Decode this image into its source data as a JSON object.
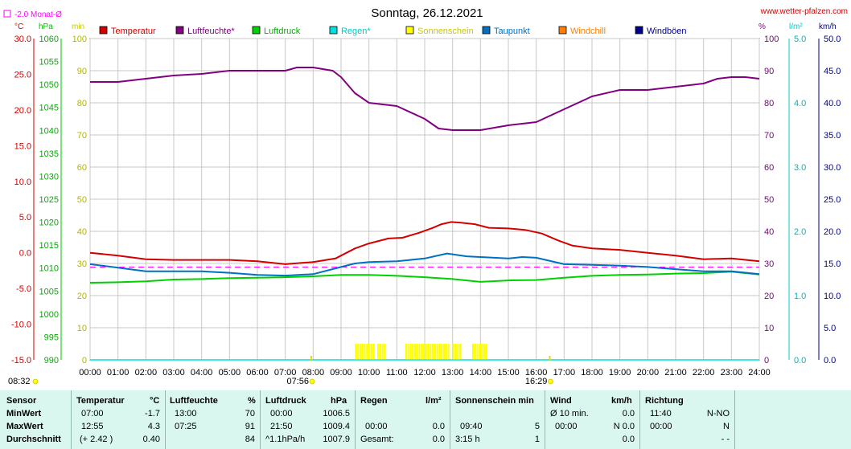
{
  "header": {
    "title": "Sonntag, 26.12.2021",
    "site": "www.wetter-pfalzen.com",
    "monthavg_label": "-2.0 Monat-Ø",
    "unit_c": "°C",
    "unit_hpa": "hPa",
    "unit_min": "min",
    "unit_pct": "%",
    "unit_lm2": "l/m²",
    "unit_kmh": "km/h"
  },
  "colors": {
    "temperature": "#d40000",
    "humidity": "#800080",
    "pressure": "#00d000",
    "rain": "#00e0e0",
    "sunshine": "#ffff00",
    "dewpoint": "#0070c0",
    "windchill": "#ff8000",
    "gusts": "#00008b",
    "monthavg": "#ff00ff"
  },
  "chart_data": {
    "type": "line",
    "title": "Sonntag, 26.12.2021",
    "x_range": [
      "00:00",
      "24:00"
    ],
    "x_ticks": [
      "00:00",
      "01:00",
      "02:00",
      "03:00",
      "04:00",
      "05:00",
      "06:00",
      "07:00",
      "08:00",
      "09:00",
      "10:00",
      "11:00",
      "12:00",
      "13:00",
      "14:00",
      "15:00",
      "16:00",
      "17:00",
      "18:00",
      "19:00",
      "20:00",
      "21:00",
      "22:00",
      "23:00",
      "24:00"
    ],
    "axes": {
      "temperature": {
        "unit": "°C",
        "range": [
          -15,
          30
        ],
        "ticks": [
          "30.0",
          "25.0",
          "20.0",
          "15.0",
          "10.0",
          "5.0",
          "0.0",
          "-5.0",
          "-10.0",
          "-15.0"
        ]
      },
      "pressure": {
        "unit": "hPa",
        "range": [
          990,
          1060
        ],
        "ticks": [
          "1060",
          "1055",
          "1050",
          "1045",
          "1040",
          "1035",
          "1030",
          "1025",
          "1020",
          "1015",
          "1010",
          "1005",
          "1000",
          "995",
          "990"
        ]
      },
      "sunshine": {
        "unit": "min",
        "range": [
          0,
          100
        ],
        "ticks": [
          "100",
          "90",
          "80",
          "70",
          "60",
          "50",
          "40",
          "30",
          "20",
          "10",
          "0"
        ]
      },
      "humidity": {
        "unit": "%",
        "range": [
          0,
          100
        ],
        "ticks": [
          "100",
          "90",
          "80",
          "70",
          "60",
          "50",
          "40",
          "30",
          "20",
          "10",
          "0"
        ]
      },
      "rain": {
        "unit": "l/m²",
        "range": [
          0,
          5
        ],
        "ticks": [
          "5.0",
          "4.0",
          "3.0",
          "2.0",
          "1.0",
          "0.0"
        ]
      },
      "wind": {
        "unit": "km/h",
        "range": [
          0,
          50
        ],
        "ticks": [
          "50.0",
          "45.0",
          "40.0",
          "35.0",
          "30.0",
          "25.0",
          "20.0",
          "15.0",
          "10.0",
          "5.0",
          "0.0"
        ]
      }
    },
    "legend": [
      "Temperatur",
      "Luftfeuchte*",
      "Luftdruck",
      "Regen*",
      "Sonnenschein",
      "Taupunkt",
      "Windchill",
      "Windböen"
    ],
    "monthly_avg_temperature": -2.0,
    "series": [
      {
        "name": "Temperatur",
        "axis": "temperature",
        "x": [
          0,
          1,
          2,
          3,
          4,
          5,
          6,
          7,
          8,
          8.8,
          9.5,
          10,
          10.7,
          11.2,
          11.8,
          12.3,
          12.6,
          12.95,
          13.3,
          13.8,
          14.3,
          15,
          15.6,
          16.2,
          16.8,
          17.3,
          18,
          19,
          20,
          21,
          22,
          23,
          24
        ],
        "y": [
          0.0,
          -0.4,
          -0.9,
          -1.0,
          -1.0,
          -1.0,
          -1.2,
          -1.6,
          -1.3,
          -0.8,
          0.6,
          1.3,
          2.0,
          2.1,
          2.8,
          3.5,
          4.0,
          4.3,
          4.2,
          4.0,
          3.5,
          3.4,
          3.2,
          2.7,
          1.7,
          1.0,
          0.6,
          0.4,
          0.0,
          -0.4,
          -0.9,
          -0.8,
          -1.2
        ]
      },
      {
        "name": "Luftfeuchte*",
        "axis": "humidity",
        "x": [
          0,
          1,
          2,
          3,
          4,
          5,
          6,
          7,
          7.42,
          8,
          8.7,
          9,
          9.5,
          10,
          11,
          12,
          12.5,
          13,
          14,
          15,
          16,
          16.5,
          17,
          17.5,
          18,
          19,
          20,
          21,
          22,
          22.5,
          23,
          23.5,
          24
        ],
        "y": [
          86.5,
          86.5,
          87.5,
          88.5,
          89,
          90,
          90,
          90,
          91,
          91,
          90,
          88,
          83,
          80,
          79,
          75,
          72,
          71.5,
          71.5,
          73,
          74,
          76,
          78,
          80,
          82,
          84,
          84,
          85,
          86,
          87.5,
          88,
          88,
          87.5
        ]
      },
      {
        "name": "Luftdruck",
        "axis": "pressure",
        "x": [
          0,
          1,
          2,
          3,
          4,
          5,
          6,
          7,
          8,
          9,
          10,
          11,
          12,
          13,
          14,
          15,
          16,
          17,
          18,
          19,
          20,
          21,
          22,
          23,
          24
        ],
        "y": [
          1006.8,
          1006.9,
          1007.1,
          1007.5,
          1007.6,
          1007.8,
          1007.9,
          1008.0,
          1008.2,
          1008.5,
          1008.5,
          1008.3,
          1008.0,
          1007.6,
          1007.0,
          1007.3,
          1007.4,
          1007.9,
          1008.3,
          1008.5,
          1008.6,
          1008.8,
          1008.9,
          1009.2,
          1008.6
        ]
      },
      {
        "name": "Taupunkt",
        "axis": "temperature",
        "x": [
          0,
          1,
          2,
          3,
          4,
          5,
          6,
          7,
          8,
          9,
          9.5,
          10,
          11,
          12,
          12.8,
          13.5,
          14,
          15,
          15.5,
          16,
          17,
          18,
          19,
          20,
          21,
          22,
          23,
          24
        ],
        "y": [
          -1.6,
          -2.1,
          -2.6,
          -2.6,
          -2.6,
          -2.8,
          -3.1,
          -3.2,
          -3.0,
          -2.0,
          -1.5,
          -1.3,
          -1.2,
          -0.8,
          -0.1,
          -0.5,
          -0.6,
          -0.8,
          -0.6,
          -0.7,
          -1.6,
          -1.7,
          -1.8,
          -2.0,
          -2.3,
          -2.6,
          -2.6,
          -3.0
        ]
      },
      {
        "name": "Regen*",
        "axis": "rain",
        "x": [
          0,
          24
        ],
        "y": [
          0,
          0
        ]
      },
      {
        "name": "Sonnenschein",
        "axis": "sunshine",
        "type": "bar",
        "intervals": [
          [
            9.5,
            10.2
          ],
          [
            10.3,
            10.6
          ],
          [
            11.3,
            12.85
          ],
          [
            13.0,
            13.3
          ],
          [
            13.7,
            14.25
          ]
        ],
        "level": 5
      }
    ],
    "sun_events": [
      {
        "time": "07:56",
        "event": "sunrise"
      },
      {
        "time": "16:29",
        "event": "sunset"
      }
    ],
    "corner_label": "08:32"
  },
  "table": {
    "sensor": {
      "header": "Sensor",
      "min": "MinWert",
      "max": "MaxWert",
      "avg": "Durchschnitt"
    },
    "temperature": {
      "header": "Temperatur",
      "unit": "°C",
      "min_time": "07:00",
      "min_val": "-1.7",
      "max_time": "12:55",
      "max_val": "4.3",
      "avg_extra": "(+ 2.42 )",
      "avg_val": "0.40"
    },
    "humidity": {
      "header": "Luftfeuchte",
      "unit": "%",
      "min_time": "13:00",
      "min_val": "70",
      "max_time": "07:25",
      "max_val": "91",
      "avg_val": "84"
    },
    "pressure": {
      "header": "Luftdruck",
      "unit": "hPa",
      "min_time": "00:00",
      "min_val": "1006.5",
      "max_time": "21:50",
      "max_val": "1009.4",
      "avg_extra": "^1.1hPa/h",
      "avg_val": "1007.9"
    },
    "rain": {
      "header": "Regen",
      "unit": "l/m²",
      "max_time": "00:00",
      "max_val": "0.0",
      "avg_extra": "Gesamt:",
      "avg_val": "0.0"
    },
    "sunshine": {
      "header": "Sonnenschein min",
      "max_time": "09:40",
      "max_val": "5",
      "avg_extra": "3:15 h",
      "avg_val": "1"
    },
    "wind": {
      "header": "Wind",
      "unit": "km/h",
      "min_label": "Ø 10 min.",
      "min_val": "0.0",
      "max_time": "00:00",
      "max_val": "N 0.0",
      "avg_val": "0.0"
    },
    "direction": {
      "header": "Richtung",
      "min_time": "11:40",
      "min_val": "N-NO",
      "max_time": "00:00",
      "max_val": "N",
      "avg_val": "- -"
    }
  }
}
